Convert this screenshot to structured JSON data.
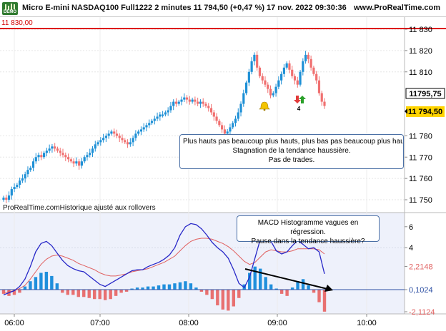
{
  "header": {
    "title": "Micro E-mini NASDAQ100 Full1222 2 minutes 11 794,50 (+0,47 %) 17 nov. 2022 09:30:36",
    "site": "www.ProRealTime.com",
    "logo_text": "DEMO"
  },
  "reference_line": {
    "label": "11 830,00",
    "value": 11830,
    "color": "#dd0000"
  },
  "price_labels": {
    "last": "11795,75",
    "current": "11 794,50"
  },
  "note": "ProRealTime.comHistorique ajusté aux rollovers",
  "annotations": {
    "price_lines": [
      "Plus hauts pas beaucoup plus hauts, plus bas pas beaucoup plus haut",
      "Stagnation de la tendance haussière.",
      "Pas de trades."
    ],
    "macd_lines": [
      "MACD Histogramme vagues en régression.",
      "Pause dans la tendance haussière?"
    ]
  },
  "markers": {
    "signal_count": "4"
  },
  "colors": {
    "up": "#1e90d6",
    "down": "#f07070",
    "macd": "#2828c8",
    "signal": "#e06060",
    "hist_up": "#1f8fdc",
    "hist_down": "#e87070",
    "panel_bg": "#eef1fb"
  },
  "chart_data": [
    {
      "type": "candlestick",
      "title": "Micro E-mini NASDAQ100 Full1222 2 minutes",
      "ylim": [
        11745,
        11834
      ],
      "yticks": [
        "11 830",
        "11 820",
        "11 810",
        "11 780",
        "11 770",
        "11 760",
        "11 750"
      ],
      "xticks": [
        "06:00",
        "07:00",
        "08:00",
        "09:00",
        "10:00"
      ],
      "close": [
        11751,
        11750,
        11752,
        11755,
        11756,
        11757,
        11759,
        11760,
        11762,
        11764,
        11765,
        11768,
        11770,
        11771,
        11770,
        11772,
        11773,
        11774,
        11775,
        11774,
        11773,
        11772,
        11771,
        11770,
        11769,
        11768,
        11767,
        11768,
        11766,
        11768,
        11770,
        11771,
        11772,
        11774,
        11776,
        11777,
        11778,
        11779,
        11780,
        11781,
        11782,
        11781,
        11780,
        11779,
        11778,
        11777,
        11776,
        11777,
        11779,
        11781,
        11782,
        11783,
        11784,
        11785,
        11786,
        11787,
        11788,
        11789,
        11790,
        11790,
        11791,
        11792,
        11794,
        11796,
        11795,
        11796,
        11797,
        11798,
        11797,
        11796,
        11797,
        11796,
        11795,
        11796,
        11795,
        11794,
        11793,
        11791,
        11789,
        11787,
        11785,
        11783,
        11781,
        11782,
        11784,
        11786,
        11788,
        11791,
        11795,
        11800,
        11805,
        11810,
        11815,
        11818,
        11812,
        11808,
        11806,
        11804,
        11802,
        11799,
        11800,
        11803,
        11806,
        11809,
        11812,
        11814,
        11811,
        11808,
        11806,
        11804,
        11810,
        11815,
        11818,
        11816,
        11812,
        11809,
        11806,
        11800,
        11796,
        11794
      ]
    },
    {
      "type": "macd",
      "series": [
        {
          "name": "MACD Histogramme"
        }
      ],
      "yticks": [
        "6",
        "4",
        "2,2148",
        "0,1024",
        "-2,1124"
      ],
      "macd": [
        -0.5,
        -0.3,
        -0.1,
        0.3,
        1.0,
        2.2,
        3.6,
        4.4,
        4.6,
        4.2,
        3.5,
        2.8,
        2.3,
        2.0,
        1.8,
        1.7,
        1.3,
        0.9,
        0.5,
        0.3,
        0.6,
        0.9,
        1.2,
        1.5,
        1.8,
        1.9,
        1.9,
        2.2,
        2.4,
        2.6,
        2.9,
        3.3,
        4.0,
        5.2,
        6.0,
        6.3,
        6.2,
        5.8,
        5.2,
        4.5,
        4.0,
        3.6,
        3.0,
        1.9,
        0.6,
        0.2,
        1.2,
        3.0,
        4.8,
        5.4,
        4.6,
        3.7,
        3.4,
        3.6,
        4.2,
        4.7,
        4.3,
        3.9,
        4.0,
        3.6,
        1.5
      ],
      "signal": [
        -0.3,
        -0.2,
        -0.1,
        0.1,
        0.4,
        1.0,
        1.7,
        2.4,
        2.9,
        3.2,
        3.3,
        3.2,
        3.0,
        2.8,
        2.5,
        2.3,
        2.1,
        1.9,
        1.6,
        1.4,
        1.3,
        1.3,
        1.4,
        1.5,
        1.7,
        1.8,
        1.9,
        2.0,
        2.2,
        2.4,
        2.6,
        2.9,
        3.2,
        3.7,
        4.2,
        4.6,
        4.8,
        4.9,
        4.9,
        4.8,
        4.6,
        4.4,
        4.1,
        3.7,
        3.2,
        2.7,
        2.4,
        2.6,
        3.1,
        3.6,
        3.8,
        3.7,
        3.6,
        3.6,
        3.7,
        3.9,
        3.9,
        3.9,
        3.9,
        3.8,
        3.4
      ],
      "histogram": [
        -0.4,
        -0.6,
        -0.5,
        -0.3,
        0.3,
        0.8,
        1.2,
        1.6,
        1.7,
        1.3,
        0.6,
        -0.3,
        -0.5,
        -0.5,
        -0.7,
        -0.7,
        -0.8,
        -0.9,
        -0.9,
        -1.0,
        -0.9,
        -0.6,
        -0.3,
        -0.2,
        0.1,
        0.2,
        0.2,
        0.3,
        0.3,
        0.4,
        0.5,
        0.5,
        0.6,
        0.7,
        0.8,
        0.6,
        0.2,
        -0.2,
        -0.5,
        -0.9,
        -1.5,
        -1.9,
        -2.0,
        -1.6,
        -0.8,
        0.5,
        1.6,
        2.2,
        2.0,
        1.2,
        0.5,
        0.1,
        -0.4,
        -0.6,
        0.2,
        0.8,
        1.0,
        0.4,
        -0.3,
        -1.2,
        -2.1
      ]
    }
  ]
}
